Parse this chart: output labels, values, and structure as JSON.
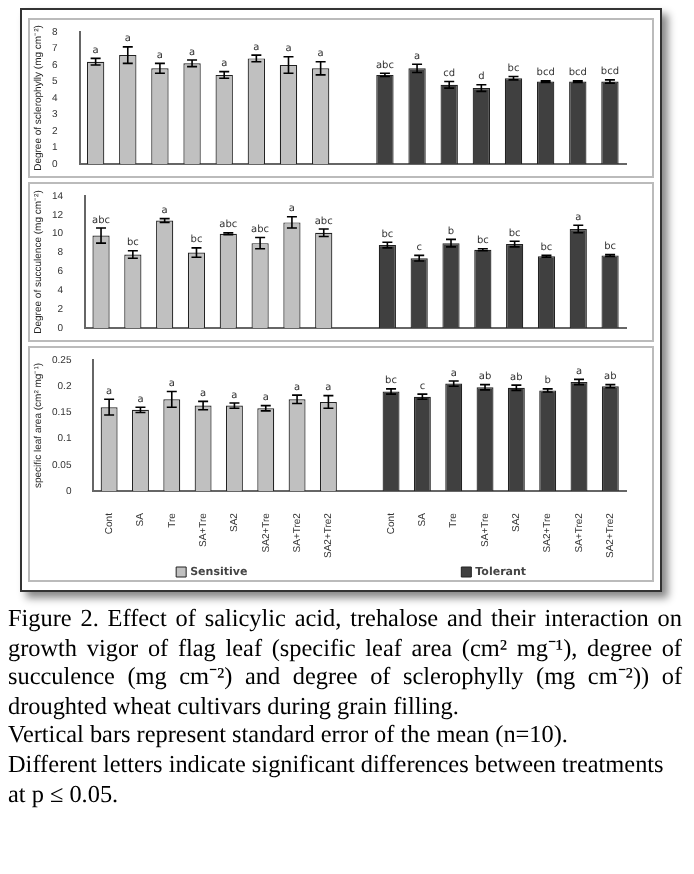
{
  "chart_data": [
    {
      "type": "bar",
      "ylabel": "Degree of sclerophylly (mg cm⁻²)",
      "categories": [
        null,
        null,
        null,
        null,
        null,
        null,
        null,
        null,
        null,
        null,
        null,
        null,
        null,
        null,
        null,
        null,
        null
      ],
      "ylim": [
        0,
        8
      ],
      "yticks": [
        0,
        1,
        2,
        3,
        4,
        5,
        6,
        7,
        8
      ],
      "grid": false,
      "tick_labels": "y",
      "series": [
        {
          "color": "#c0c0c0",
          "values": [
            6.2,
            6.6,
            5.8,
            6.1,
            5.4,
            6.4,
            6.0,
            5.8,
            null,
            null,
            null,
            null,
            null,
            null,
            null,
            null,
            null
          ],
          "errors": [
            0.2,
            0.5,
            0.3,
            0.2,
            0.2,
            0.2,
            0.5,
            0.4,
            null,
            null,
            null,
            null,
            null,
            null,
            null,
            null,
            null
          ],
          "value_labels": [
            "a",
            "a",
            "a",
            "a",
            "a",
            "a",
            "a",
            "a",
            null,
            null,
            null,
            null,
            null,
            null,
            null,
            null,
            null
          ]
        },
        {
          "color": "#404040",
          "values": [
            null,
            null,
            null,
            null,
            null,
            null,
            null,
            null,
            null,
            5.4,
            5.8,
            4.8,
            4.6,
            5.2,
            5.0,
            5.0,
            5.0
          ],
          "errors": [
            null,
            null,
            null,
            null,
            null,
            null,
            null,
            null,
            null,
            0.1,
            0.25,
            0.2,
            0.2,
            0.1,
            0.05,
            0.05,
            0.1
          ],
          "value_labels": [
            null,
            null,
            null,
            null,
            null,
            null,
            null,
            null,
            null,
            "abc",
            "a",
            "cd",
            "d",
            "bc",
            "bcd",
            "bcd",
            "bcd"
          ]
        }
      ]
    },
    {
      "type": "bar",
      "ylabel": "Degree of succulence (mg cm⁻²)",
      "categories": [
        null,
        null,
        null,
        null,
        null,
        null,
        null,
        null,
        null,
        null,
        null,
        null,
        null,
        null,
        null,
        null,
        null
      ],
      "ylim": [
        0,
        14
      ],
      "yticks": [
        0,
        2,
        4,
        6,
        8,
        10,
        12,
        14
      ],
      "grid": false,
      "tick_labels": "y",
      "series": [
        {
          "color": "#c0c0c0",
          "values": [
            9.8,
            7.8,
            11.4,
            8.0,
            10.0,
            9.0,
            11.2,
            10.1,
            null,
            null,
            null,
            null,
            null,
            null,
            null,
            null,
            null
          ],
          "errors": [
            0.8,
            0.4,
            0.2,
            0.5,
            0.1,
            0.6,
            0.6,
            0.4,
            null,
            null,
            null,
            null,
            null,
            null,
            null,
            null,
            null
          ],
          "value_labels": [
            "abc",
            "bc",
            "a",
            "bc",
            "abc",
            "abc",
            "a",
            "abc",
            null,
            null,
            null,
            null,
            null,
            null,
            null,
            null,
            null
          ]
        },
        {
          "color": "#404040",
          "values": [
            null,
            null,
            null,
            null,
            null,
            null,
            null,
            null,
            null,
            8.8,
            7.4,
            9.0,
            8.3,
            8.9,
            7.6,
            10.5,
            7.7
          ],
          "errors": [
            null,
            null,
            null,
            null,
            null,
            null,
            null,
            null,
            null,
            0.3,
            0.3,
            0.4,
            0.1,
            0.3,
            0.1,
            0.4,
            0.1
          ],
          "value_labels": [
            null,
            null,
            null,
            null,
            null,
            null,
            null,
            null,
            null,
            "bc",
            "c",
            "b",
            "bc",
            "bc",
            "bc",
            "a",
            "bc"
          ]
        }
      ]
    },
    {
      "type": "bar",
      "ylabel": "specific leaf area (cm² mg⁻¹)",
      "categories": [
        "Cont",
        "SA",
        "Tre",
        "SA+Tre",
        "SA2",
        "SA2+Tre",
        "SA+Tre2",
        "SA2+Tre2",
        null,
        "Cont",
        "SA",
        "Tre",
        "SA+Tre",
        "SA2",
        "SA2+Tre",
        "SA+Tre2",
        "SA2+Tre2"
      ],
      "ylim": [
        0,
        0.25
      ],
      "yticks": [
        0,
        0.05,
        0.1,
        0.15,
        0.2,
        0.25
      ],
      "grid": false,
      "legend": "bottom",
      "series": [
        {
          "name": "Sensitive",
          "color": "#c0c0c0",
          "values": [
            0.16,
            0.155,
            0.175,
            0.163,
            0.163,
            0.158,
            0.175,
            0.17,
            null,
            null,
            null,
            null,
            null,
            null,
            null,
            null,
            null
          ],
          "errors": [
            0.015,
            0.005,
            0.015,
            0.008,
            0.005,
            0.005,
            0.008,
            0.012,
            null,
            null,
            null,
            null,
            null,
            null,
            null,
            null,
            null
          ],
          "value_labels": [
            "a",
            "a",
            "a",
            "a",
            "a",
            "a",
            "a",
            "a",
            null,
            null,
            null,
            null,
            null,
            null,
            null,
            null,
            null
          ]
        },
        {
          "name": "Tolerant",
          "color": "#404040",
          "values": [
            null,
            null,
            null,
            null,
            null,
            null,
            null,
            null,
            null,
            0.19,
            0.18,
            0.205,
            0.198,
            0.197,
            0.192,
            0.208,
            0.2
          ],
          "errors": [
            null,
            null,
            null,
            null,
            null,
            null,
            null,
            null,
            null,
            0.005,
            0.005,
            0.005,
            0.005,
            0.005,
            0.003,
            0.005,
            0.003
          ],
          "value_labels": [
            null,
            null,
            null,
            null,
            null,
            null,
            null,
            null,
            null,
            "bc",
            "c",
            "a",
            "ab",
            "ab",
            "b",
            "a",
            "ab"
          ]
        }
      ],
      "annotations": [
        "Figure 2. Effect of salicylic acid, trehalose and their interaction on growth vigor of flag leaf (specific leaf area (cm² mg⁻¹), degree of succulence (mg cm⁻²) and degree of sclerophylly (mg cm⁻²)) of droughted wheat cultivars during grain filling.",
        "Vertical bars represent standard error of the mean (n=10).",
        "Different letters indicate significant differences between treatments at p ≤ 0.05."
      ]
    }
  ]
}
